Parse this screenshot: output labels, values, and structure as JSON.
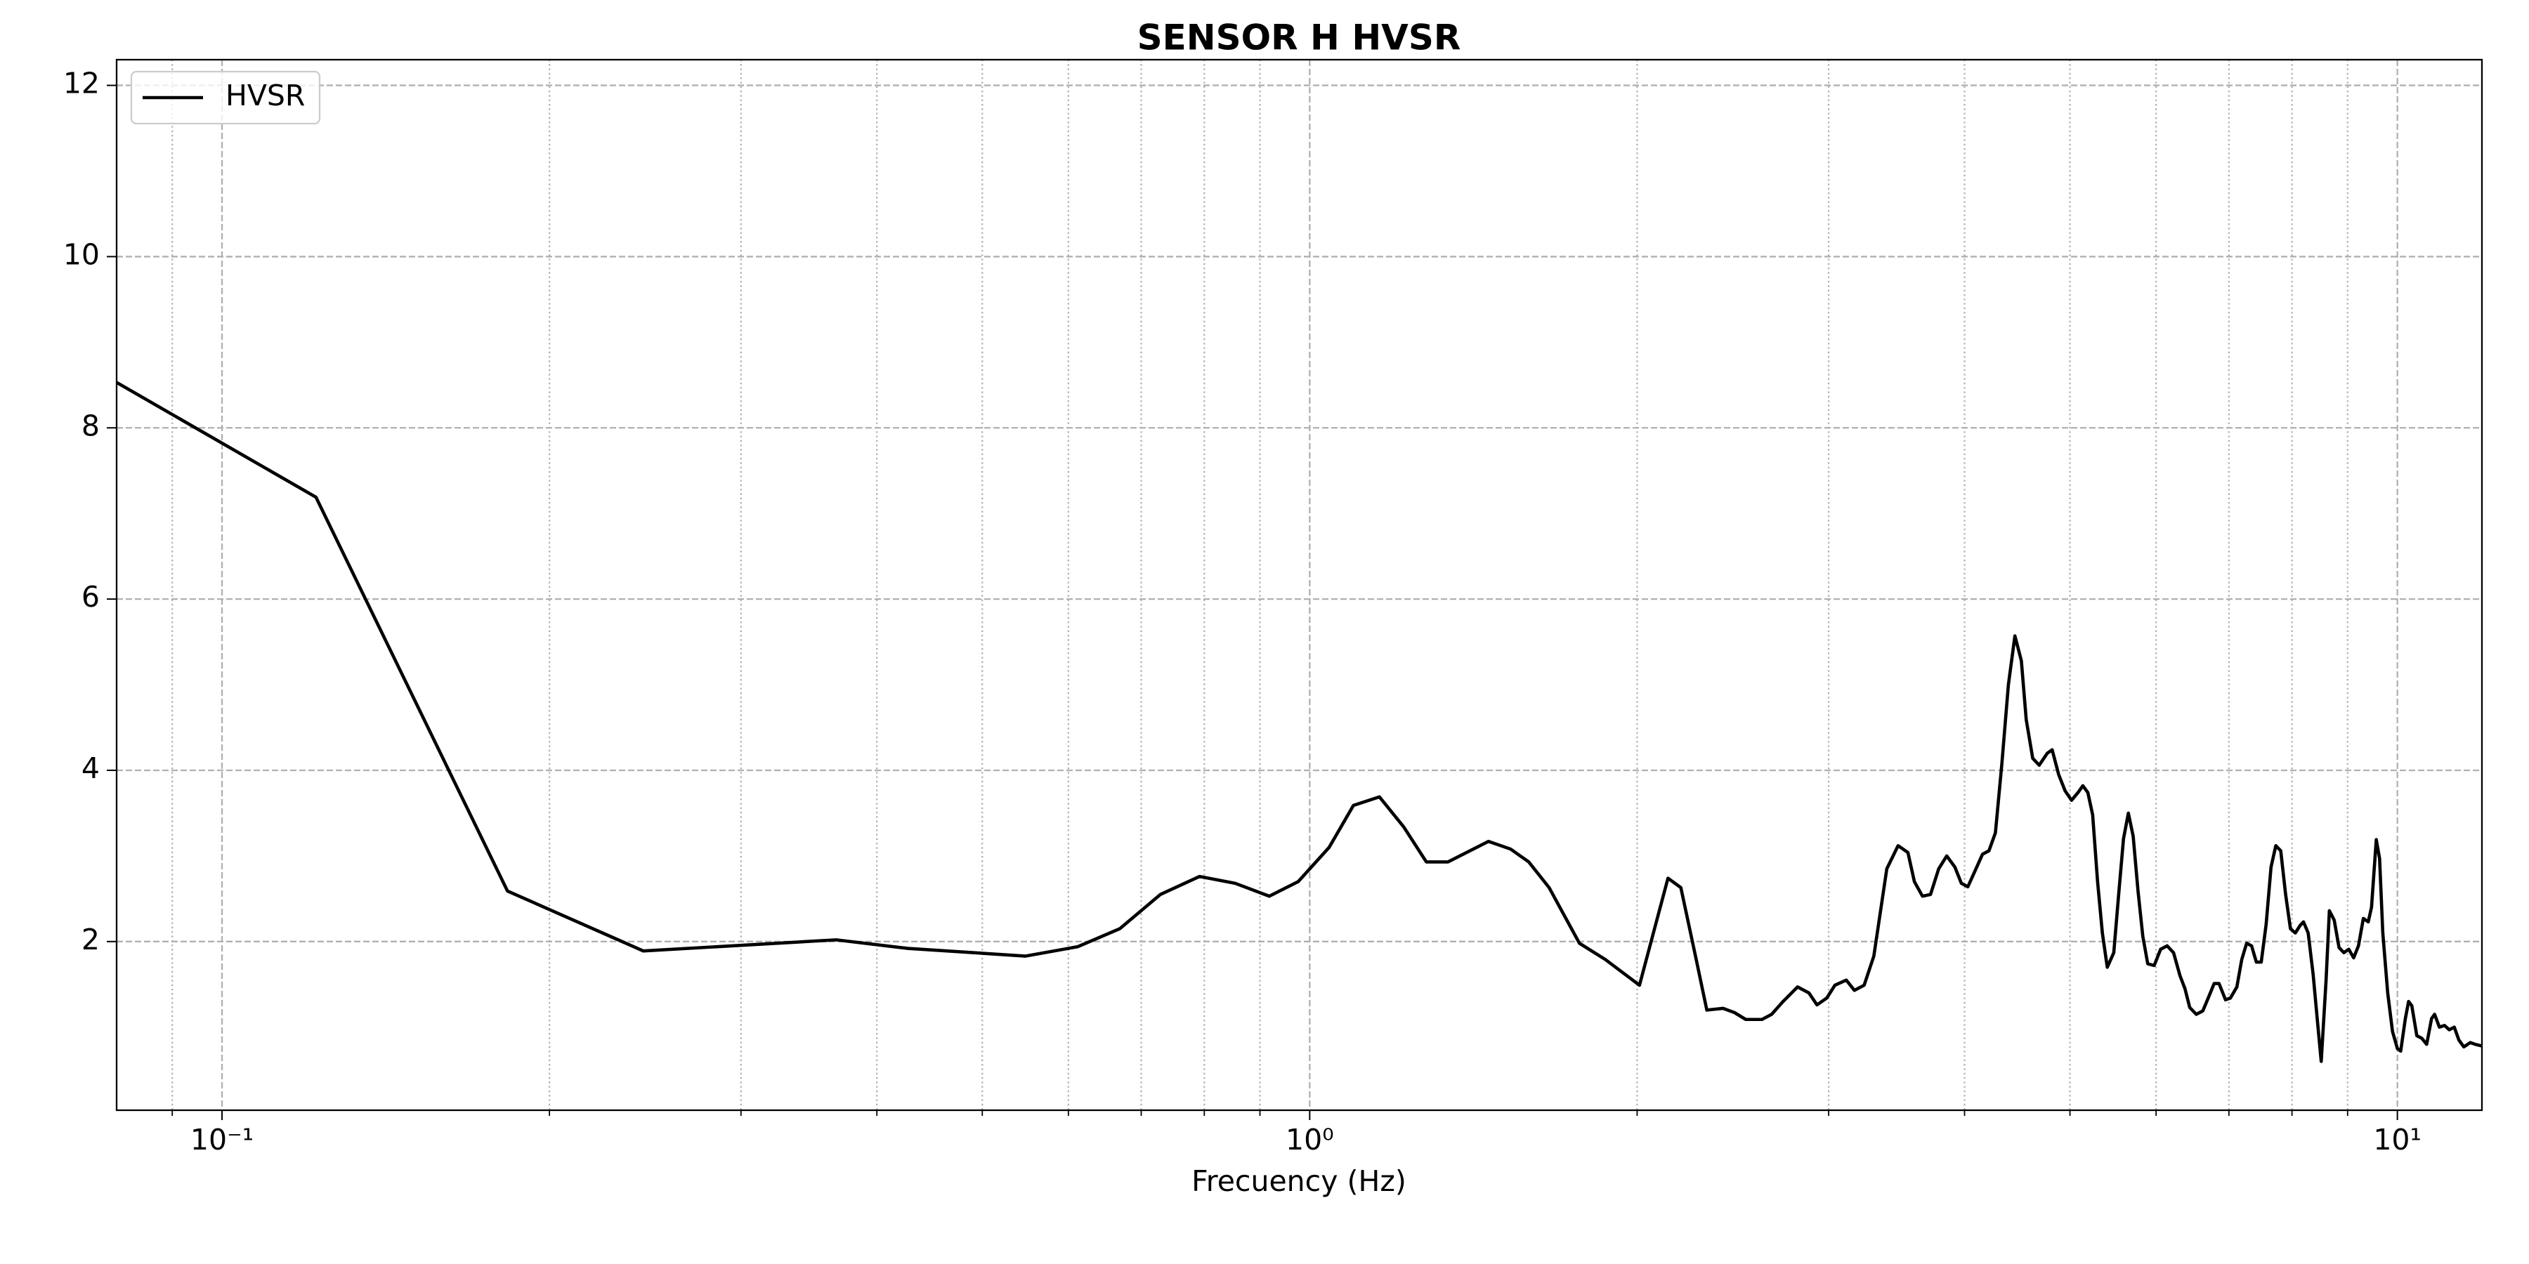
{
  "chart_data": {
    "type": "line",
    "title": "SENSOR H HVSR",
    "x_label": "Frecuency (Hz)",
    "xscale": "log",
    "grid": true,
    "legend": "upper left",
    "xlim": [
      0.08,
      11.96
    ],
    "ylim": [
      0.03,
      12.3
    ],
    "xticks": [
      {
        "value": 0.1,
        "label": "10⁻¹"
      },
      {
        "value": 1,
        "label": "10⁰"
      },
      {
        "value": 10,
        "label": "10¹"
      }
    ],
    "xminorticks": [
      0.09,
      0.2,
      0.3,
      0.4,
      0.5,
      0.6,
      0.7,
      0.8,
      0.9,
      2,
      3,
      4,
      5,
      6,
      7,
      8,
      9
    ],
    "yticks": [
      2,
      4,
      6,
      8,
      10,
      12
    ],
    "x": [
      0.08,
      0.122,
      0.183,
      0.244,
      0.367,
      0.427,
      0.548,
      0.612,
      0.669,
      0.729,
      0.792,
      0.854,
      0.918,
      0.976,
      1.042,
      1.097,
      1.159,
      1.22,
      1.28,
      1.34,
      1.46,
      1.53,
      1.59,
      1.66,
      1.72,
      1.77,
      1.87,
      2.01,
      2.135,
      2.194,
      2.263,
      2.318,
      2.399,
      2.458,
      2.517,
      2.605,
      2.659,
      2.724,
      2.809,
      2.877,
      2.927,
      2.988,
      3.04,
      3.114,
      3.168,
      3.234,
      3.301,
      3.393,
      3.475,
      3.548,
      3.597,
      3.659,
      3.722,
      3.787,
      3.852,
      3.919,
      3.973,
      4.028,
      4.098,
      4.155,
      4.212,
      4.27,
      4.329,
      4.389,
      4.45,
      4.511,
      4.558,
      4.621,
      4.685,
      4.766,
      4.815,
      4.882,
      4.949,
      5.017,
      5.086,
      5.138,
      5.193,
      5.246,
      5.301,
      5.355,
      5.411,
      5.486,
      5.543,
      5.6,
      5.658,
      5.716,
      5.775,
      5.834,
      5.895,
      5.976,
      6.058,
      6.142,
      6.226,
      6.312,
      6.378,
      6.443,
      6.533,
      6.624,
      6.715,
      6.785,
      6.855,
      6.95,
      7.022,
      7.119,
      7.193,
      7.268,
      7.344,
      7.419,
      7.496,
      7.574,
      7.653,
      7.731,
      7.812,
      7.893,
      7.974,
      8.057,
      8.141,
      8.197,
      8.279,
      8.366,
      8.453,
      8.511,
      8.599,
      8.659,
      8.748,
      8.838,
      8.929,
      9.022,
      9.116,
      9.209,
      9.305,
      9.402,
      9.467,
      9.563,
      9.63,
      9.696,
      9.797,
      9.897,
      10.0,
      10.07,
      10.17,
      10.24,
      10.31,
      10.42,
      10.53,
      10.64,
      10.75,
      10.82,
      10.93,
      11.05,
      11.16,
      11.28,
      11.39,
      11.51,
      11.67,
      11.79,
      11.96
    ],
    "series": [
      {
        "name": "HVSR",
        "color": "#000000",
        "values": [
          8.53,
          7.19,
          2.59,
          1.89,
          2.02,
          1.92,
          1.83,
          1.94,
          2.15,
          2.55,
          2.76,
          2.68,
          2.53,
          2.7,
          3.1,
          3.59,
          3.69,
          3.34,
          2.93,
          2.93,
          3.17,
          3.08,
          2.93,
          2.63,
          2.27,
          1.98,
          1.79,
          1.49,
          2.74,
          2.63,
          1.83,
          1.2,
          1.22,
          1.17,
          1.09,
          1.09,
          1.15,
          1.3,
          1.47,
          1.4,
          1.26,
          1.34,
          1.49,
          1.55,
          1.43,
          1.49,
          1.83,
          2.85,
          3.12,
          3.04,
          2.7,
          2.53,
          2.55,
          2.85,
          3.0,
          2.87,
          2.68,
          2.64,
          2.85,
          3.02,
          3.06,
          3.27,
          4.08,
          5.0,
          5.57,
          5.28,
          4.59,
          4.14,
          4.06,
          4.2,
          4.24,
          3.95,
          3.76,
          3.65,
          3.74,
          3.82,
          3.74,
          3.48,
          2.7,
          2.1,
          1.7,
          1.87,
          2.55,
          3.2,
          3.5,
          3.23,
          2.59,
          2.06,
          1.74,
          1.72,
          1.91,
          1.95,
          1.87,
          1.6,
          1.45,
          1.23,
          1.15,
          1.19,
          1.37,
          1.51,
          1.51,
          1.32,
          1.34,
          1.47,
          1.79,
          1.98,
          1.95,
          1.76,
          1.76,
          2.2,
          2.87,
          3.12,
          3.06,
          2.55,
          2.15,
          2.1,
          2.19,
          2.23,
          2.1,
          1.62,
          1.0,
          0.6,
          1.55,
          2.36,
          2.25,
          1.93,
          1.87,
          1.91,
          1.81,
          1.95,
          2.27,
          2.23,
          2.4,
          3.19,
          2.97,
          2.1,
          1.4,
          0.95,
          0.75,
          0.72,
          1.1,
          1.3,
          1.25,
          0.9,
          0.87,
          0.8,
          1.1,
          1.15,
          1.0,
          1.02,
          0.97,
          1.0,
          0.85,
          0.77,
          0.82,
          0.8,
          0.78
        ]
      }
    ]
  }
}
